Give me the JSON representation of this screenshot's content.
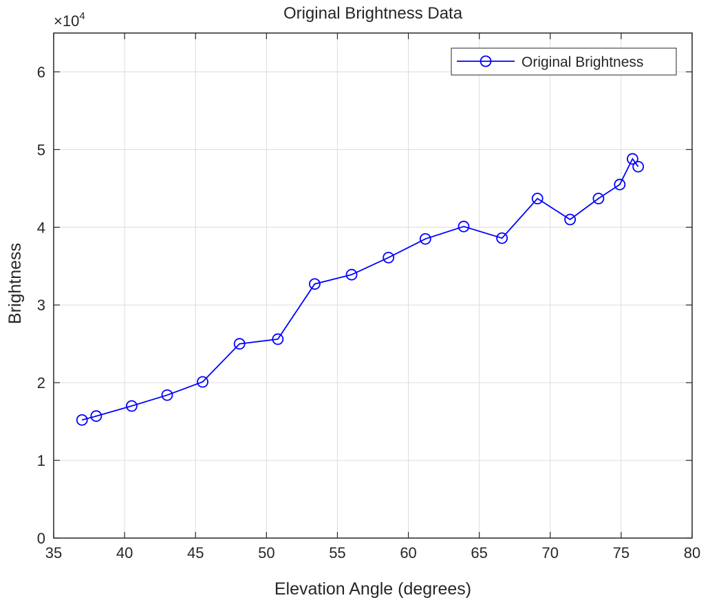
{
  "chart_data": {
    "type": "line",
    "title": "Original Brightness Data",
    "xlabel": "Elevation Angle (degrees)",
    "ylabel": "Brightness",
    "y_exponent_label": "×10",
    "y_exponent_power": "4",
    "y_exponent": 4,
    "xlim": [
      35,
      80
    ],
    "ylim": [
      0,
      65000
    ],
    "xticks": [
      35,
      40,
      45,
      50,
      55,
      60,
      65,
      70,
      75,
      80
    ],
    "yticks": [
      0,
      10000,
      20000,
      30000,
      40000,
      50000,
      60000
    ],
    "ytick_labels": [
      "0",
      "1",
      "2",
      "3",
      "4",
      "5",
      "6"
    ],
    "grid": true,
    "legend_position": "top-right",
    "series": [
      {
        "name": "Original Brightness",
        "color": "#0000ff",
        "marker": "circle",
        "x": [
          37.0,
          38.0,
          40.5,
          43.0,
          45.5,
          48.1,
          50.8,
          53.4,
          56.0,
          58.6,
          61.2,
          63.9,
          66.6,
          69.1,
          71.4,
          73.4,
          74.9,
          75.8,
          76.2
        ],
        "y": [
          15200,
          15700,
          17000,
          18400,
          20100,
          25000,
          25600,
          32700,
          33900,
          36100,
          38500,
          40100,
          38600,
          43700,
          41000,
          43700,
          45500,
          48800,
          47800
        ]
      }
    ]
  }
}
